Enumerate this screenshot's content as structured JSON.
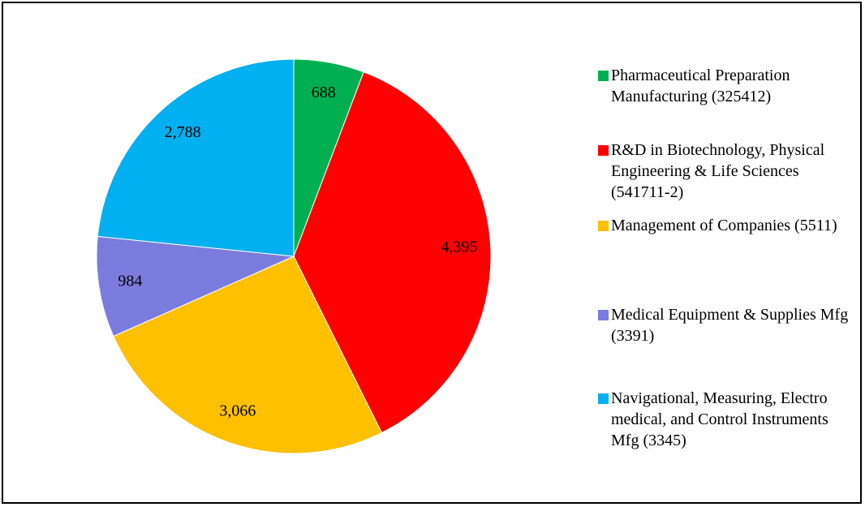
{
  "chart_data": {
    "type": "pie",
    "categories": [
      "Pharmaceutical Preparation Manufacturing (325412)",
      "R&D in Biotechnology, Physical Engineering & Life Sciences (541711-2)",
      "Management of Companies (5511)",
      "Medical Equipment & Supplies Mfg (3391)",
      "Navigational, Measuring, Electro medical, and Control Instruments Mfg (3345)"
    ],
    "values": [
      688,
      4395,
      3066,
      984,
      2788
    ],
    "value_labels": [
      "688",
      "4,395",
      "3,066",
      "984",
      "2,788"
    ],
    "colors": [
      "#00b050",
      "#ff0000",
      "#ffc000",
      "#7b7bde",
      "#00b0f0"
    ],
    "legend": "right"
  }
}
